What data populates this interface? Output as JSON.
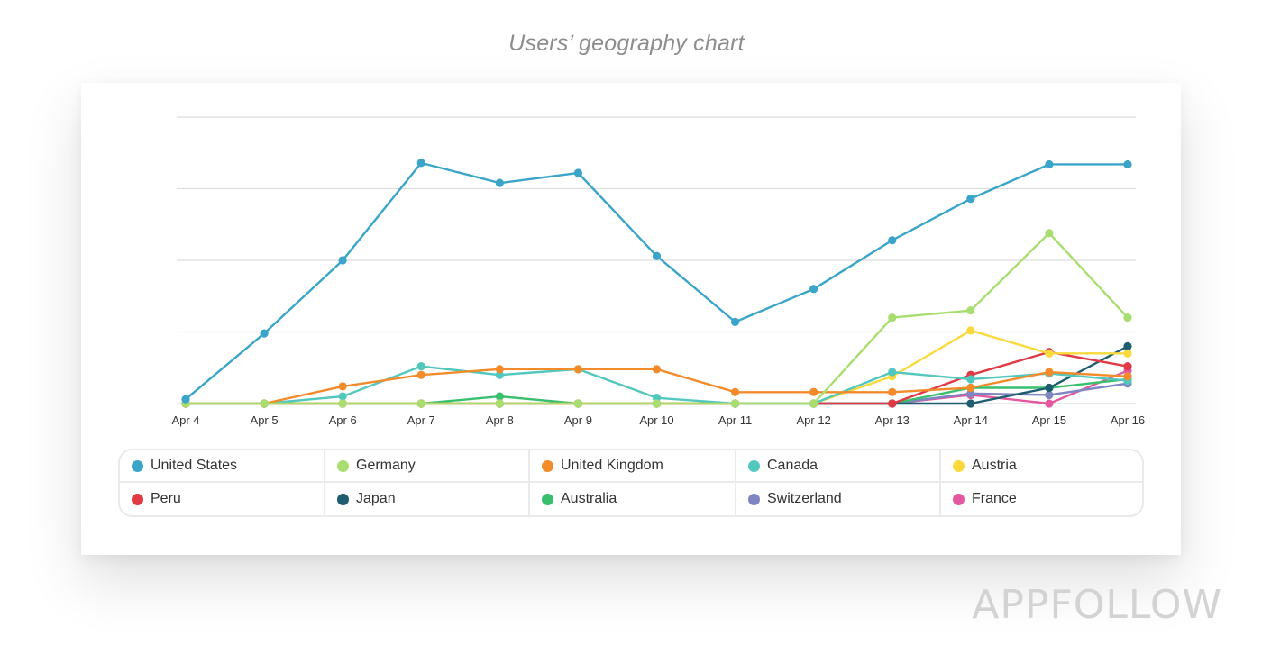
{
  "page": {
    "title": "Users’ geography chart",
    "brand": "APPFOLLOW"
  },
  "chart_data": {
    "type": "line",
    "title": "Users’ geography chart",
    "xlabel": "",
    "ylabel": "",
    "ylim": [
      0,
      100
    ],
    "grid": true,
    "legend_position": "bottom",
    "x": [
      "Apr 4",
      "Apr 5",
      "Apr 6",
      "Apr 7",
      "Apr 8",
      "Apr 9",
      "Apr 10",
      "Apr 11",
      "Apr 12",
      "Apr 13",
      "Apr 14",
      "Apr 15",
      "Apr 16"
    ],
    "series": [
      {
        "name": "United States",
        "color": "#3aa5c8",
        "values": [
          1.5,
          24.5,
          50,
          84,
          77,
          80.5,
          51.5,
          28.5,
          40,
          57,
          71.5,
          83.5,
          83.5
        ]
      },
      {
        "name": "Germany",
        "color": "#a8de70",
        "values": [
          0,
          0,
          0,
          0,
          0,
          0,
          0,
          0,
          0,
          30,
          32.5,
          59.5,
          30
        ]
      },
      {
        "name": "United Kingdom",
        "color": "#f38b2a",
        "values": [
          0,
          0,
          6,
          10,
          12,
          12,
          12,
          4,
          4,
          4,
          5.5,
          11,
          9.5
        ]
      },
      {
        "name": "Canada",
        "color": "#52c7bd",
        "values": [
          0,
          0,
          2.5,
          13,
          10,
          12,
          2,
          0,
          0,
          11,
          8.5,
          10.5,
          8
        ]
      },
      {
        "name": "Austria",
        "color": "#f9d93b",
        "values": [
          0,
          0,
          0,
          0,
          0,
          0,
          0,
          0,
          0,
          9.5,
          25.5,
          17.5,
          17.5
        ]
      },
      {
        "name": "Peru",
        "color": "#e23a45",
        "values": [
          0,
          0,
          0,
          0,
          0,
          0,
          0,
          0,
          0,
          0,
          10,
          18,
          13
        ]
      },
      {
        "name": "Japan",
        "color": "#1e5d70",
        "values": [
          0,
          0,
          0,
          0,
          0,
          0,
          0,
          0,
          0,
          0,
          0,
          5.5,
          20
        ]
      },
      {
        "name": "Australia",
        "color": "#38bf6e",
        "values": [
          0,
          0,
          0,
          0,
          2.5,
          0,
          0,
          0,
          0,
          0,
          5.5,
          5.5,
          8.5
        ]
      },
      {
        "name": "Switzerland",
        "color": "#7d86c2",
        "values": [
          0,
          0,
          0,
          0,
          0,
          0,
          0,
          0,
          0,
          0,
          3.5,
          3,
          7
        ]
      },
      {
        "name": "France",
        "color": "#e4589f",
        "values": [
          0,
          0,
          0,
          0,
          0,
          0,
          0,
          0,
          0,
          0,
          3,
          0,
          11.5
        ]
      }
    ]
  }
}
